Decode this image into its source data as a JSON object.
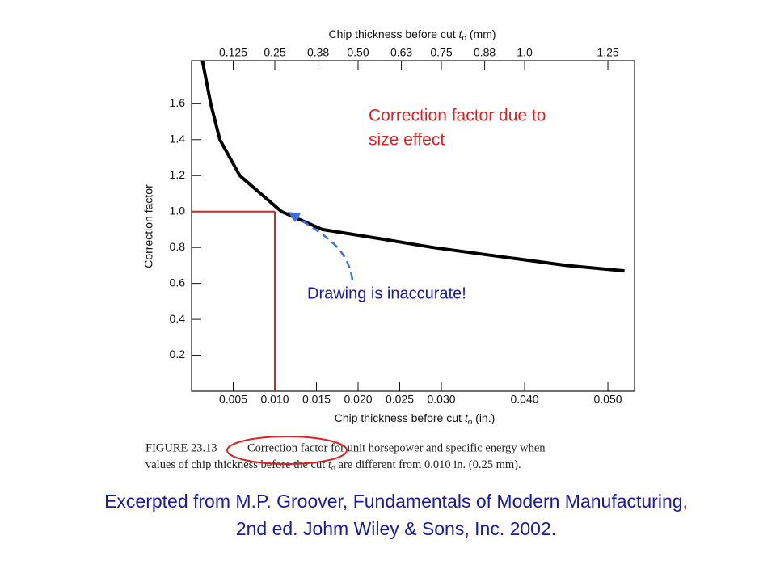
{
  "chart_data": {
    "type": "line",
    "x2label": {
      "text": "Chip thickness before cut",
      "var": "t",
      "sub": "o",
      "unit": "(mm)"
    },
    "xlabel": {
      "text": "Chip thickness before cut",
      "var": "t",
      "sub": "o",
      "unit": "(in.)"
    },
    "ylabel": "Correction factor",
    "x": [
      0.0013,
      0.0023,
      0.0034,
      0.0058,
      0.0108,
      0.0157,
      0.0225,
      0.029,
      0.037,
      0.045,
      0.052
    ],
    "series": [
      {
        "color": "#000000",
        "values": [
          1.84,
          1.6,
          1.4,
          1.2,
          1.0,
          0.9,
          0.85,
          0.8,
          0.75,
          0.7,
          0.67
        ]
      }
    ],
    "xlim": [
      0,
      0.0532
    ],
    "ylim": [
      0,
      1.84
    ],
    "x2lim": [
      0,
      1.33
    ],
    "xticks": [
      0.005,
      {
        "value": 0.01,
        "label": "0.010"
      },
      0.015,
      {
        "value": 0.02,
        "label": "0.020"
      },
      0.025,
      {
        "value": 0.03,
        "label": "0.030"
      },
      {
        "value": 0.04,
        "label": "0.040"
      },
      {
        "value": 0.05,
        "label": "0.050"
      }
    ],
    "yticks": [
      0.2,
      0.4,
      0.6,
      0.8,
      {
        "value": 1,
        "label": "1.0"
      },
      1.2,
      1.4,
      1.6
    ],
    "x2ticks": [
      0.125,
      0.25,
      0.38,
      {
        "value": 0.5,
        "label": "0.50"
      },
      0.63,
      0.75,
      0.88,
      {
        "value": 1,
        "label": "1.0"
      },
      1.25
    ],
    "reference": {
      "x": 0.01,
      "y": 1.0,
      "color": "#e02020"
    },
    "annotations": [
      {
        "lines": [
          "Correction factor due to",
          "size effect"
        ],
        "color": "#e02020"
      },
      {
        "lines": [
          "Drawing is inaccurate!"
        ],
        "color": "#1a1ab0"
      }
    ]
  },
  "caption": {
    "figure": "FIGURE 23.13",
    "line1": "Correction factor for unit horsepower and specific energy when",
    "line2a": "values of chip thickness before the cut",
    "var": "t",
    "sub": "o",
    "line2b": "are different from 0.010 in. (0.25 mm)."
  },
  "footer": [
    "Excerpted from M.P. Groover, Fundamentals of Modern Manufacturing,",
    "2nd ed. Johm Wiley & Sons, Inc. 2002."
  ]
}
